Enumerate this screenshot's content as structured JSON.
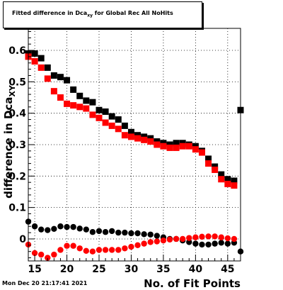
{
  "timestamp": "Mon Dec 20 21:17:41 2021",
  "chart_data": {
    "type": "scatter",
    "title": {
      "main": "Fitted difference in Dca",
      "sub": "xy",
      "tail": " for Global Rec All NoHits"
    },
    "xlabel": "No. of Fit Points",
    "ylabel": {
      "main": "difference in Dca",
      "sub": "XY"
    },
    "xlim": [
      14,
      47
    ],
    "ylim": [
      -0.07,
      0.67
    ],
    "xticks": [
      15,
      20,
      25,
      30,
      35,
      40,
      45
    ],
    "yticks": [
      0,
      0.1,
      0.2,
      0.3,
      0.4,
      0.5,
      0.6
    ],
    "ytick_labels": [
      "0",
      "0.1",
      "0.2",
      "0.3",
      "0.4",
      "0.5",
      "0.6"
    ],
    "grid": true,
    "series": [
      {
        "color": "#000000",
        "marker": "square",
        "x": [
          14,
          15,
          16,
          17,
          18,
          19,
          20,
          21,
          22,
          23,
          24,
          25,
          26,
          27,
          28,
          29,
          30,
          31,
          32,
          33,
          34,
          35,
          36,
          37,
          38,
          39,
          40,
          41,
          42,
          43,
          44,
          45,
          46,
          47
        ],
        "y": [
          0.59,
          0.59,
          0.575,
          0.545,
          0.52,
          0.515,
          0.505,
          0.475,
          0.455,
          0.44,
          0.435,
          0.41,
          0.405,
          0.39,
          0.38,
          0.36,
          0.34,
          0.33,
          0.325,
          0.32,
          0.31,
          0.305,
          0.3,
          0.305,
          0.305,
          0.3,
          0.295,
          0.28,
          0.255,
          0.23,
          0.205,
          0.19,
          0.185,
          0.41
        ],
        "err": [
          0.01,
          0.01,
          0.005,
          0.005,
          0.005,
          0.005,
          0.005,
          0.005,
          0.005,
          0.005,
          0.005,
          0.005,
          0.005,
          0.005,
          0.005,
          0.005,
          0.005,
          0.005,
          0.005,
          0.005,
          0.005,
          0.005,
          0.005,
          0.005,
          0.005,
          0.005,
          0.005,
          0.005,
          0.005,
          0.005,
          0.005,
          0.005,
          0.005,
          0.075
        ]
      },
      {
        "color": "#ff0000",
        "marker": "square",
        "x": [
          14,
          15,
          16,
          17,
          18,
          19,
          20,
          21,
          22,
          23,
          24,
          25,
          26,
          27,
          28,
          29,
          30,
          31,
          32,
          33,
          34,
          35,
          36,
          37,
          38,
          39,
          40,
          41,
          42,
          43,
          44,
          45,
          46
        ],
        "y": [
          0.58,
          0.565,
          0.545,
          0.51,
          0.47,
          0.45,
          0.43,
          0.425,
          0.42,
          0.415,
          0.395,
          0.385,
          0.37,
          0.36,
          0.35,
          0.33,
          0.325,
          0.32,
          0.315,
          0.31,
          0.3,
          0.295,
          0.29,
          0.29,
          0.295,
          0.295,
          0.285,
          0.275,
          0.24,
          0.22,
          0.19,
          0.175,
          0.17
        ],
        "err": [
          0.01,
          0.005,
          0.005,
          0.005,
          0.005,
          0.005,
          0.005,
          0.005,
          0.005,
          0.005,
          0.005,
          0.005,
          0.005,
          0.005,
          0.005,
          0.005,
          0.005,
          0.005,
          0.005,
          0.005,
          0.005,
          0.005,
          0.005,
          0.005,
          0.005,
          0.005,
          0.005,
          0.005,
          0.005,
          0.005,
          0.005,
          0.005,
          0.005
        ]
      },
      {
        "color": "#000000",
        "marker": "circle",
        "x": [
          14,
          15,
          16,
          17,
          18,
          19,
          20,
          21,
          22,
          23,
          24,
          25,
          26,
          27,
          28,
          29,
          30,
          31,
          32,
          33,
          34,
          35,
          36,
          37,
          38,
          39,
          40,
          41,
          42,
          43,
          44,
          45,
          46,
          47
        ],
        "y": [
          0.055,
          0.04,
          0.03,
          0.028,
          0.032,
          0.04,
          0.038,
          0.038,
          0.033,
          0.03,
          0.022,
          0.025,
          0.022,
          0.025,
          0.02,
          0.02,
          0.018,
          0.018,
          0.015,
          0.014,
          0.01,
          0.005,
          0.0,
          0.0,
          -0.005,
          -0.01,
          -0.015,
          -0.018,
          -0.018,
          -0.015,
          -0.012,
          -0.015,
          -0.012,
          -0.04
        ],
        "err": [
          0.01,
          0.005,
          0.005,
          0.005,
          0.005,
          0.005,
          0.005,
          0.005,
          0.005,
          0.005,
          0.005,
          0.005,
          0.005,
          0.005,
          0.005,
          0.005,
          0.005,
          0.005,
          0.005,
          0.005,
          0.005,
          0.005,
          0.005,
          0.005,
          0.005,
          0.005,
          0.005,
          0.005,
          0.005,
          0.005,
          0.005,
          0.005,
          0.005,
          0.025
        ]
      },
      {
        "color": "#ff0000",
        "marker": "circle",
        "x": [
          14,
          15,
          16,
          17,
          18,
          19,
          20,
          21,
          22,
          23,
          24,
          25,
          26,
          27,
          28,
          29,
          30,
          31,
          32,
          33,
          34,
          35,
          36,
          37,
          38,
          39,
          40,
          41,
          42,
          43,
          44,
          45,
          46
        ],
        "y": [
          -0.018,
          -0.045,
          -0.05,
          -0.06,
          -0.05,
          -0.035,
          -0.022,
          -0.022,
          -0.03,
          -0.038,
          -0.04,
          -0.035,
          -0.035,
          -0.035,
          -0.035,
          -0.03,
          -0.025,
          -0.02,
          -0.015,
          -0.01,
          -0.008,
          -0.005,
          -0.002,
          0.0,
          0.0,
          0.003,
          0.005,
          0.007,
          0.008,
          0.008,
          0.005,
          0.002,
          0.0
        ],
        "err": [
          0.01,
          0.005,
          0.005,
          0.005,
          0.005,
          0.005,
          0.005,
          0.005,
          0.005,
          0.005,
          0.005,
          0.005,
          0.005,
          0.005,
          0.005,
          0.005,
          0.005,
          0.005,
          0.005,
          0.005,
          0.005,
          0.005,
          0.005,
          0.005,
          0.005,
          0.005,
          0.005,
          0.005,
          0.005,
          0.005,
          0.005,
          0.005,
          0.005
        ]
      }
    ]
  }
}
